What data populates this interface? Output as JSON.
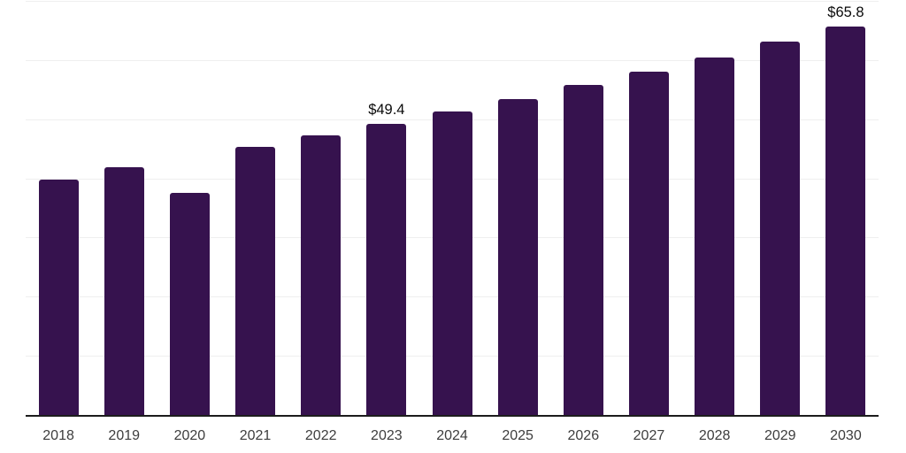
{
  "chart_data": {
    "type": "bar",
    "title": "",
    "xlabel": "",
    "ylabel": "",
    "categories": [
      "2018",
      "2019",
      "2020",
      "2021",
      "2022",
      "2023",
      "2024",
      "2025",
      "2026",
      "2027",
      "2028",
      "2029",
      "2030"
    ],
    "values": [
      40.0,
      42.0,
      37.7,
      45.5,
      47.4,
      49.4,
      51.5,
      53.6,
      55.9,
      58.2,
      60.6,
      63.2,
      65.8
    ],
    "data_labels": [
      "",
      "",
      "",
      "",
      "",
      "$49.4",
      "",
      "",
      "",
      "",
      "",
      "",
      "$65.8"
    ],
    "ylim": [
      0,
      70
    ],
    "grid": "horizontal",
    "grid_interval": 10,
    "legend": "none",
    "colors": {
      "bar": "#36124e",
      "gridline": "#efefef",
      "axis_line": "#1c1c1c",
      "value_label": "#0a0a0a",
      "tick_label": "#3d3d3d",
      "background": "#ffffff"
    }
  }
}
